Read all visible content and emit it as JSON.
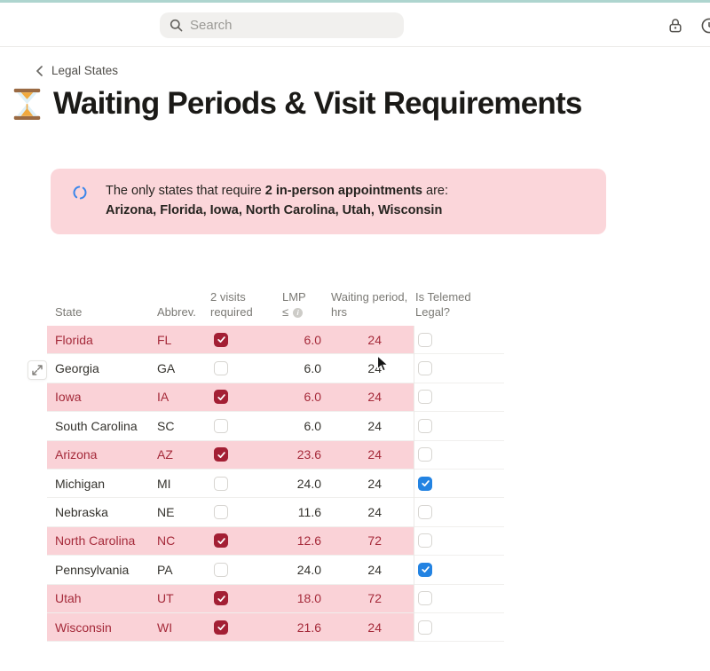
{
  "topbar": {
    "search_placeholder": "Search",
    "icons": [
      "search-icon",
      "lock-icon",
      "clock-icon"
    ]
  },
  "breadcrumb": {
    "label": "Legal States"
  },
  "page": {
    "icon": "hourglass-icon",
    "title": "Waiting Periods & Visit Requirements"
  },
  "callout": {
    "icon": "spinner-icon",
    "prefix": "The only states that require ",
    "bold": "2 in-person appointments",
    "suffix": " are:",
    "states_line": "Arizona, Florida, Iowa, North Carolina, Utah, Wisconsin"
  },
  "table": {
    "columns": [
      {
        "id": "state",
        "lines": [
          "State"
        ]
      },
      {
        "id": "abbrev",
        "lines": [
          "Abbrev."
        ]
      },
      {
        "id": "two_visits",
        "lines": [
          "2 visits",
          "required"
        ]
      },
      {
        "id": "lmp",
        "lines": [
          "LMP",
          "≤"
        ],
        "info_icon": true
      },
      {
        "id": "waiting",
        "lines": [
          "Waiting period,",
          "hrs"
        ]
      },
      {
        "id": "telemed",
        "lines": [
          "Is Telemed",
          "Legal?"
        ]
      }
    ],
    "rows": [
      {
        "state": "Florida",
        "abbrev": "FL",
        "two_visits": true,
        "lmp": "6.0",
        "waiting": "24",
        "telemed": false,
        "highlight": true
      },
      {
        "state": "Georgia",
        "abbrev": "GA",
        "two_visits": false,
        "lmp": "6.0",
        "waiting": "24",
        "telemed": false,
        "highlight": false
      },
      {
        "state": "Iowa",
        "abbrev": "IA",
        "two_visits": true,
        "lmp": "6.0",
        "waiting": "24",
        "telemed": false,
        "highlight": true
      },
      {
        "state": "South Carolina",
        "abbrev": "SC",
        "two_visits": false,
        "lmp": "6.0",
        "waiting": "24",
        "telemed": false,
        "highlight": false
      },
      {
        "state": "Arizona",
        "abbrev": "AZ",
        "two_visits": true,
        "lmp": "23.6",
        "waiting": "24",
        "telemed": false,
        "highlight": true
      },
      {
        "state": "Michigan",
        "abbrev": "MI",
        "two_visits": false,
        "lmp": "24.0",
        "waiting": "24",
        "telemed": true,
        "highlight": false
      },
      {
        "state": "Nebraska",
        "abbrev": "NE",
        "two_visits": false,
        "lmp": "11.6",
        "waiting": "24",
        "telemed": false,
        "highlight": false
      },
      {
        "state": "North Carolina",
        "abbrev": "NC",
        "two_visits": true,
        "lmp": "12.6",
        "waiting": "72",
        "telemed": false,
        "highlight": true
      },
      {
        "state": "Pennsylvania",
        "abbrev": "PA",
        "two_visits": false,
        "lmp": "24.0",
        "waiting": "24",
        "telemed": true,
        "highlight": false
      },
      {
        "state": "Utah",
        "abbrev": "UT",
        "two_visits": true,
        "lmp": "18.0",
        "waiting": "72",
        "telemed": false,
        "highlight": true
      },
      {
        "state": "Wisconsin",
        "abbrev": "WI",
        "two_visits": true,
        "lmp": "21.6",
        "waiting": "24",
        "telemed": false,
        "highlight": true
      }
    ]
  },
  "colors": {
    "top_strip_teal": "#aed5cf",
    "callout_pink": "#fbd6da",
    "row_highlight_pink": "#fad2d7",
    "highlight_text_red": "#a52a3a",
    "checkbox_red": "#a31f34",
    "checkbox_blue": "#2383e2",
    "spinner_blue": "#3a86ea"
  }
}
